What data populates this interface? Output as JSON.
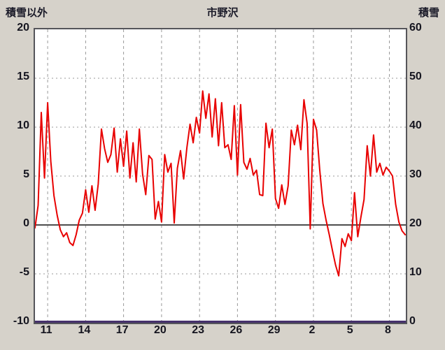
{
  "header": {
    "left_axis_title": "積雪以外",
    "title": "市野沢",
    "right_axis_title": "積雪"
  },
  "chart_data": {
    "type": "line",
    "title": "市野沢",
    "left_axis": {
      "label": "積雪以外",
      "min": -10,
      "max": 20,
      "ticks": [
        20,
        15,
        10,
        5,
        0,
        -5,
        -10
      ]
    },
    "right_axis": {
      "label": "積雪",
      "min": 0,
      "max": 60,
      "ticks": [
        60,
        50,
        40,
        30,
        20,
        10,
        0
      ]
    },
    "x_axis": {
      "domain": [
        10,
        39.3
      ],
      "tick_days": [
        11,
        14,
        17,
        20,
        23,
        26,
        29,
        32,
        35,
        38
      ],
      "tick_labels": [
        "11",
        "14",
        "17",
        "20",
        "23",
        "26",
        "29",
        "2",
        "5",
        "8"
      ]
    },
    "grid": {
      "vertical_dashed": true,
      "horizontal_dotted": true,
      "zero_line": true,
      "grid_color": "#999999",
      "zero_line_color": "#4d4d4d"
    },
    "series": [
      {
        "name": "積雪以外",
        "axis": "left",
        "color": "#e80000",
        "x_start": 10.0,
        "x_step": 0.25,
        "values": [
          -0.3,
          2.0,
          11.5,
          4.8,
          12.5,
          6.5,
          3.0,
          1.0,
          -0.5,
          -1.2,
          -0.8,
          -1.8,
          -2.1,
          -1.0,
          0.5,
          1.2,
          3.6,
          1.3,
          4.0,
          1.5,
          4.2,
          9.8,
          7.8,
          6.4,
          7.2,
          9.9,
          5.4,
          8.8,
          6.0,
          9.6,
          4.8,
          8.4,
          4.4,
          9.8,
          5.2,
          3.1,
          7.1,
          6.7,
          0.6,
          2.4,
          0.3,
          7.2,
          5.4,
          6.3,
          0.2,
          5.8,
          7.6,
          4.7,
          7.9,
          10.3,
          8.4,
          11.0,
          9.4,
          13.7,
          10.9,
          13.4,
          9.0,
          12.9,
          8.1,
          12.5,
          7.9,
          8.2,
          6.7,
          12.2,
          5.1,
          12.3,
          6.4,
          5.7,
          6.8,
          5.1,
          5.6,
          3.1,
          3.0,
          10.4,
          7.9,
          9.8,
          2.7,
          1.7,
          4.1,
          2.1,
          4.0,
          9.7,
          8.2,
          10.2,
          7.7,
          12.8,
          10.4,
          -0.4,
          10.8,
          9.7,
          5.6,
          2.2,
          0.5,
          -1.0,
          -2.6,
          -4.1,
          -5.2,
          -1.4,
          -2.2,
          -0.9,
          -1.6,
          3.3,
          -1.2,
          0.8,
          2.6,
          8.1,
          5.0,
          9.2,
          5.4,
          6.3,
          5.1,
          5.9,
          5.5,
          5.0,
          2.1,
          0.3,
          -0.6,
          -1.0
        ]
      },
      {
        "name": "積雪",
        "axis": "right",
        "color": "#45306b",
        "constant": 0
      }
    ]
  }
}
